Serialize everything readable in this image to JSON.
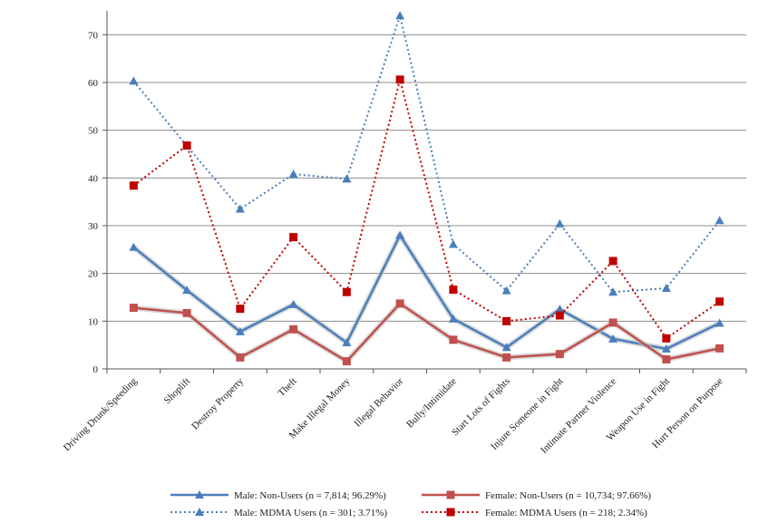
{
  "chart_data": {
    "type": "line",
    "title": "",
    "xlabel": "",
    "ylabel": "",
    "ylim": [
      0,
      75
    ],
    "yticks": [
      0,
      10,
      20,
      30,
      40,
      50,
      60,
      70
    ],
    "grid": true,
    "legend_position": "bottom",
    "categories": [
      "Driving Drunk/Speeding",
      "Shoplift",
      "Destroy Property",
      "Theft",
      "Make Illegal Money",
      "Illegal Behavior",
      "Bully/Intimidate",
      "Start Lots of Fights",
      "Injure Someone in Fight",
      "Intimate Partner Violence",
      "Weapon Use in Fight",
      "Hurt Person on Purpose"
    ],
    "series": [
      {
        "name": "Male: Non-Users (n = 7,814; 96.29%)",
        "color": "#4a7ebb",
        "line_style": "solid",
        "marker": "triangle",
        "values": [
          25.5,
          16.5,
          7.8,
          13.5,
          5.5,
          28,
          10.5,
          4.5,
          12.5,
          6.3,
          4.2,
          9.6
        ]
      },
      {
        "name": "Female: Non-Users (n = 10,734; 97.66%)",
        "color": "#c0504d",
        "line_style": "solid",
        "marker": "square",
        "values": [
          12.8,
          11.7,
          2.4,
          8.3,
          1.6,
          13.7,
          6.1,
          2.4,
          3.1,
          9.7,
          2.0,
          4.3
        ]
      },
      {
        "name": "Male: MDMA Users (n = 301; 3.71%)",
        "color": "#4a7ebb",
        "line_style": "dotted",
        "marker": "triangle",
        "values": [
          60.3,
          46.7,
          33.5,
          40.8,
          39.8,
          74,
          26.1,
          16.4,
          30.4,
          16.1,
          16.9,
          31.1
        ]
      },
      {
        "name": "Female: MDMA Users (n = 218; 2.34%)",
        "color": "#c00000",
        "line_style": "dotted",
        "marker": "square",
        "values": [
          38.4,
          46.8,
          12.6,
          27.6,
          16.1,
          60.6,
          16.6,
          10.0,
          11.2,
          22.6,
          6.4,
          14.1
        ]
      }
    ]
  }
}
